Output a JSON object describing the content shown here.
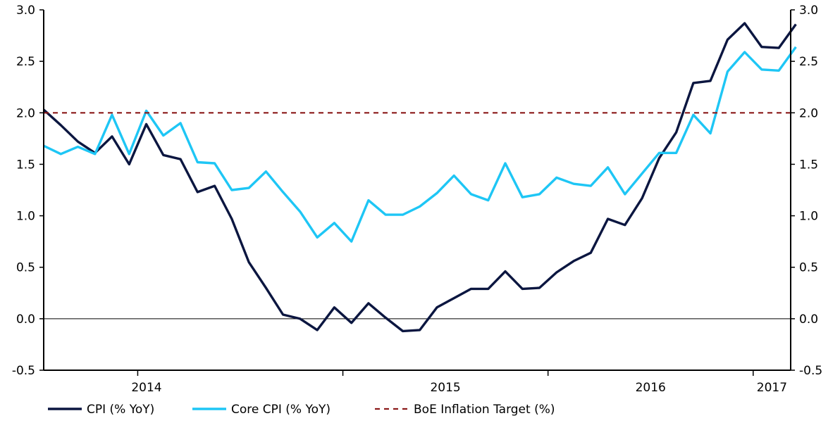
{
  "chart_data": {
    "type": "line",
    "title": "",
    "xlabel": "",
    "ylabel": "",
    "x_start": "2013-07",
    "x_labels": [
      "2014",
      "2015",
      "2016",
      "2017"
    ],
    "x_label_months": [
      "2014-01",
      "2015-01",
      "2016-01",
      "2017-01"
    ],
    "ylim": [
      -0.5,
      3.0
    ],
    "y_ticks": [
      "3.0",
      "2.5",
      "2.0",
      "1.5",
      "1.0",
      "0.5",
      "0.0",
      "-0.5"
    ],
    "y_tick_values": [
      3.0,
      2.5,
      2.0,
      1.5,
      1.0,
      0.5,
      0.0,
      -0.5
    ],
    "legend_position": "bottom",
    "series": [
      {
        "name": "CPI (% YoY)",
        "color": "#0b1640",
        "style": "solid",
        "values": [
          2.03,
          1.88,
          1.72,
          1.61,
          1.77,
          1.5,
          1.89,
          1.59,
          1.55,
          1.23,
          1.29,
          0.97,
          0.55,
          0.3,
          0.04,
          0.0,
          -0.11,
          0.11,
          -0.04,
          0.15,
          0.01,
          -0.12,
          -0.11,
          0.11,
          0.2,
          0.29,
          0.29,
          0.46,
          0.29,
          0.3,
          0.45,
          0.56,
          0.64,
          0.97,
          0.91,
          1.17,
          1.56,
          1.81,
          2.29,
          2.31,
          2.71,
          2.87,
          2.64,
          2.63,
          2.86
        ]
      },
      {
        "name": "Core CPI (% YoY)",
        "color": "#1ec6f5",
        "style": "solid",
        "values": [
          1.68,
          1.6,
          1.67,
          1.6,
          1.98,
          1.6,
          2.02,
          1.78,
          1.9,
          1.52,
          1.51,
          1.25,
          1.27,
          1.43,
          1.23,
          1.04,
          0.79,
          0.93,
          0.75,
          1.15,
          1.01,
          1.01,
          1.09,
          1.22,
          1.39,
          1.21,
          1.15,
          1.51,
          1.18,
          1.21,
          1.37,
          1.31,
          1.29,
          1.47,
          1.21,
          1.41,
          1.61,
          1.61,
          1.98,
          1.8,
          2.4,
          2.59,
          2.42,
          2.41,
          2.64
        ]
      },
      {
        "name": "BoE Inflation Target (%)",
        "color": "#8b1a1a",
        "style": "dashed",
        "values": [
          2.0,
          2.0
        ]
      }
    ]
  }
}
